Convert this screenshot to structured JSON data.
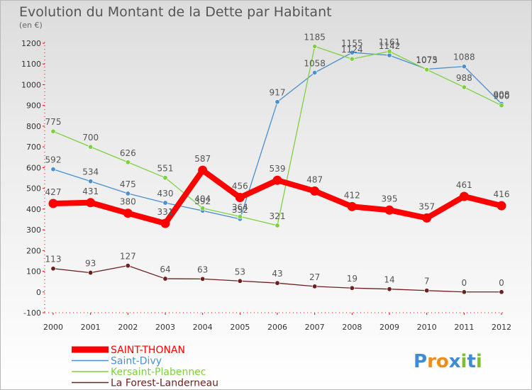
{
  "chart_data": {
    "type": "line",
    "title": "Evolution du Montant de la Dette par Habitant",
    "subtitle": "(en €)",
    "x": [
      "2000",
      "2001",
      "2002",
      "2003",
      "2004",
      "2005",
      "2006",
      "2007",
      "2008",
      "2009",
      "2010",
      "2011",
      "2012"
    ],
    "ylim": [
      -100,
      1200
    ],
    "yticks": [
      -100,
      0,
      100,
      200,
      300,
      400,
      500,
      600,
      700,
      800,
      900,
      1000,
      1100,
      1200
    ],
    "grid": false,
    "legend_placement": "bottom-left",
    "series": [
      {
        "name": "Saint-Divy",
        "color": "#4a8fd0",
        "values": [
          592,
          534,
          475,
          430,
          392,
          352,
          917,
          1058,
          1155,
          1142,
          1075,
          1088,
          908
        ]
      },
      {
        "name": "Kersaint-Plabennec",
        "color": "#7dd13f",
        "values": [
          775,
          700,
          626,
          551,
          404,
          364,
          321,
          1185,
          1124,
          1161,
          1073,
          988,
          900
        ]
      },
      {
        "name": "La Forest-Landerneau",
        "color": "#6e1f1f",
        "values": [
          113,
          93,
          127,
          64,
          63,
          53,
          43,
          27,
          19,
          14,
          7,
          0,
          0
        ]
      },
      {
        "name": "SAINT-THONAN",
        "color": "#ff0000",
        "values": [
          427,
          431,
          380,
          331,
          587,
          456,
          539,
          487,
          412,
          395,
          357,
          461,
          416
        ]
      }
    ],
    "legend_order": [
      "SAINT-THONAN",
      "Saint-Divy",
      "Kersaint-Plabennec",
      "La Forest-Landerneau"
    ],
    "logo": {
      "text": "Proxiti",
      "letters": [
        "P",
        "r",
        "o",
        "x",
        "i",
        "t",
        "i"
      ],
      "colors": [
        "#3f8bd6",
        "#f08c1e",
        "#f08c1e",
        "#3f8bd6",
        "#7dbf2e",
        "#3f8bd6",
        "#7dbf2e"
      ]
    }
  }
}
